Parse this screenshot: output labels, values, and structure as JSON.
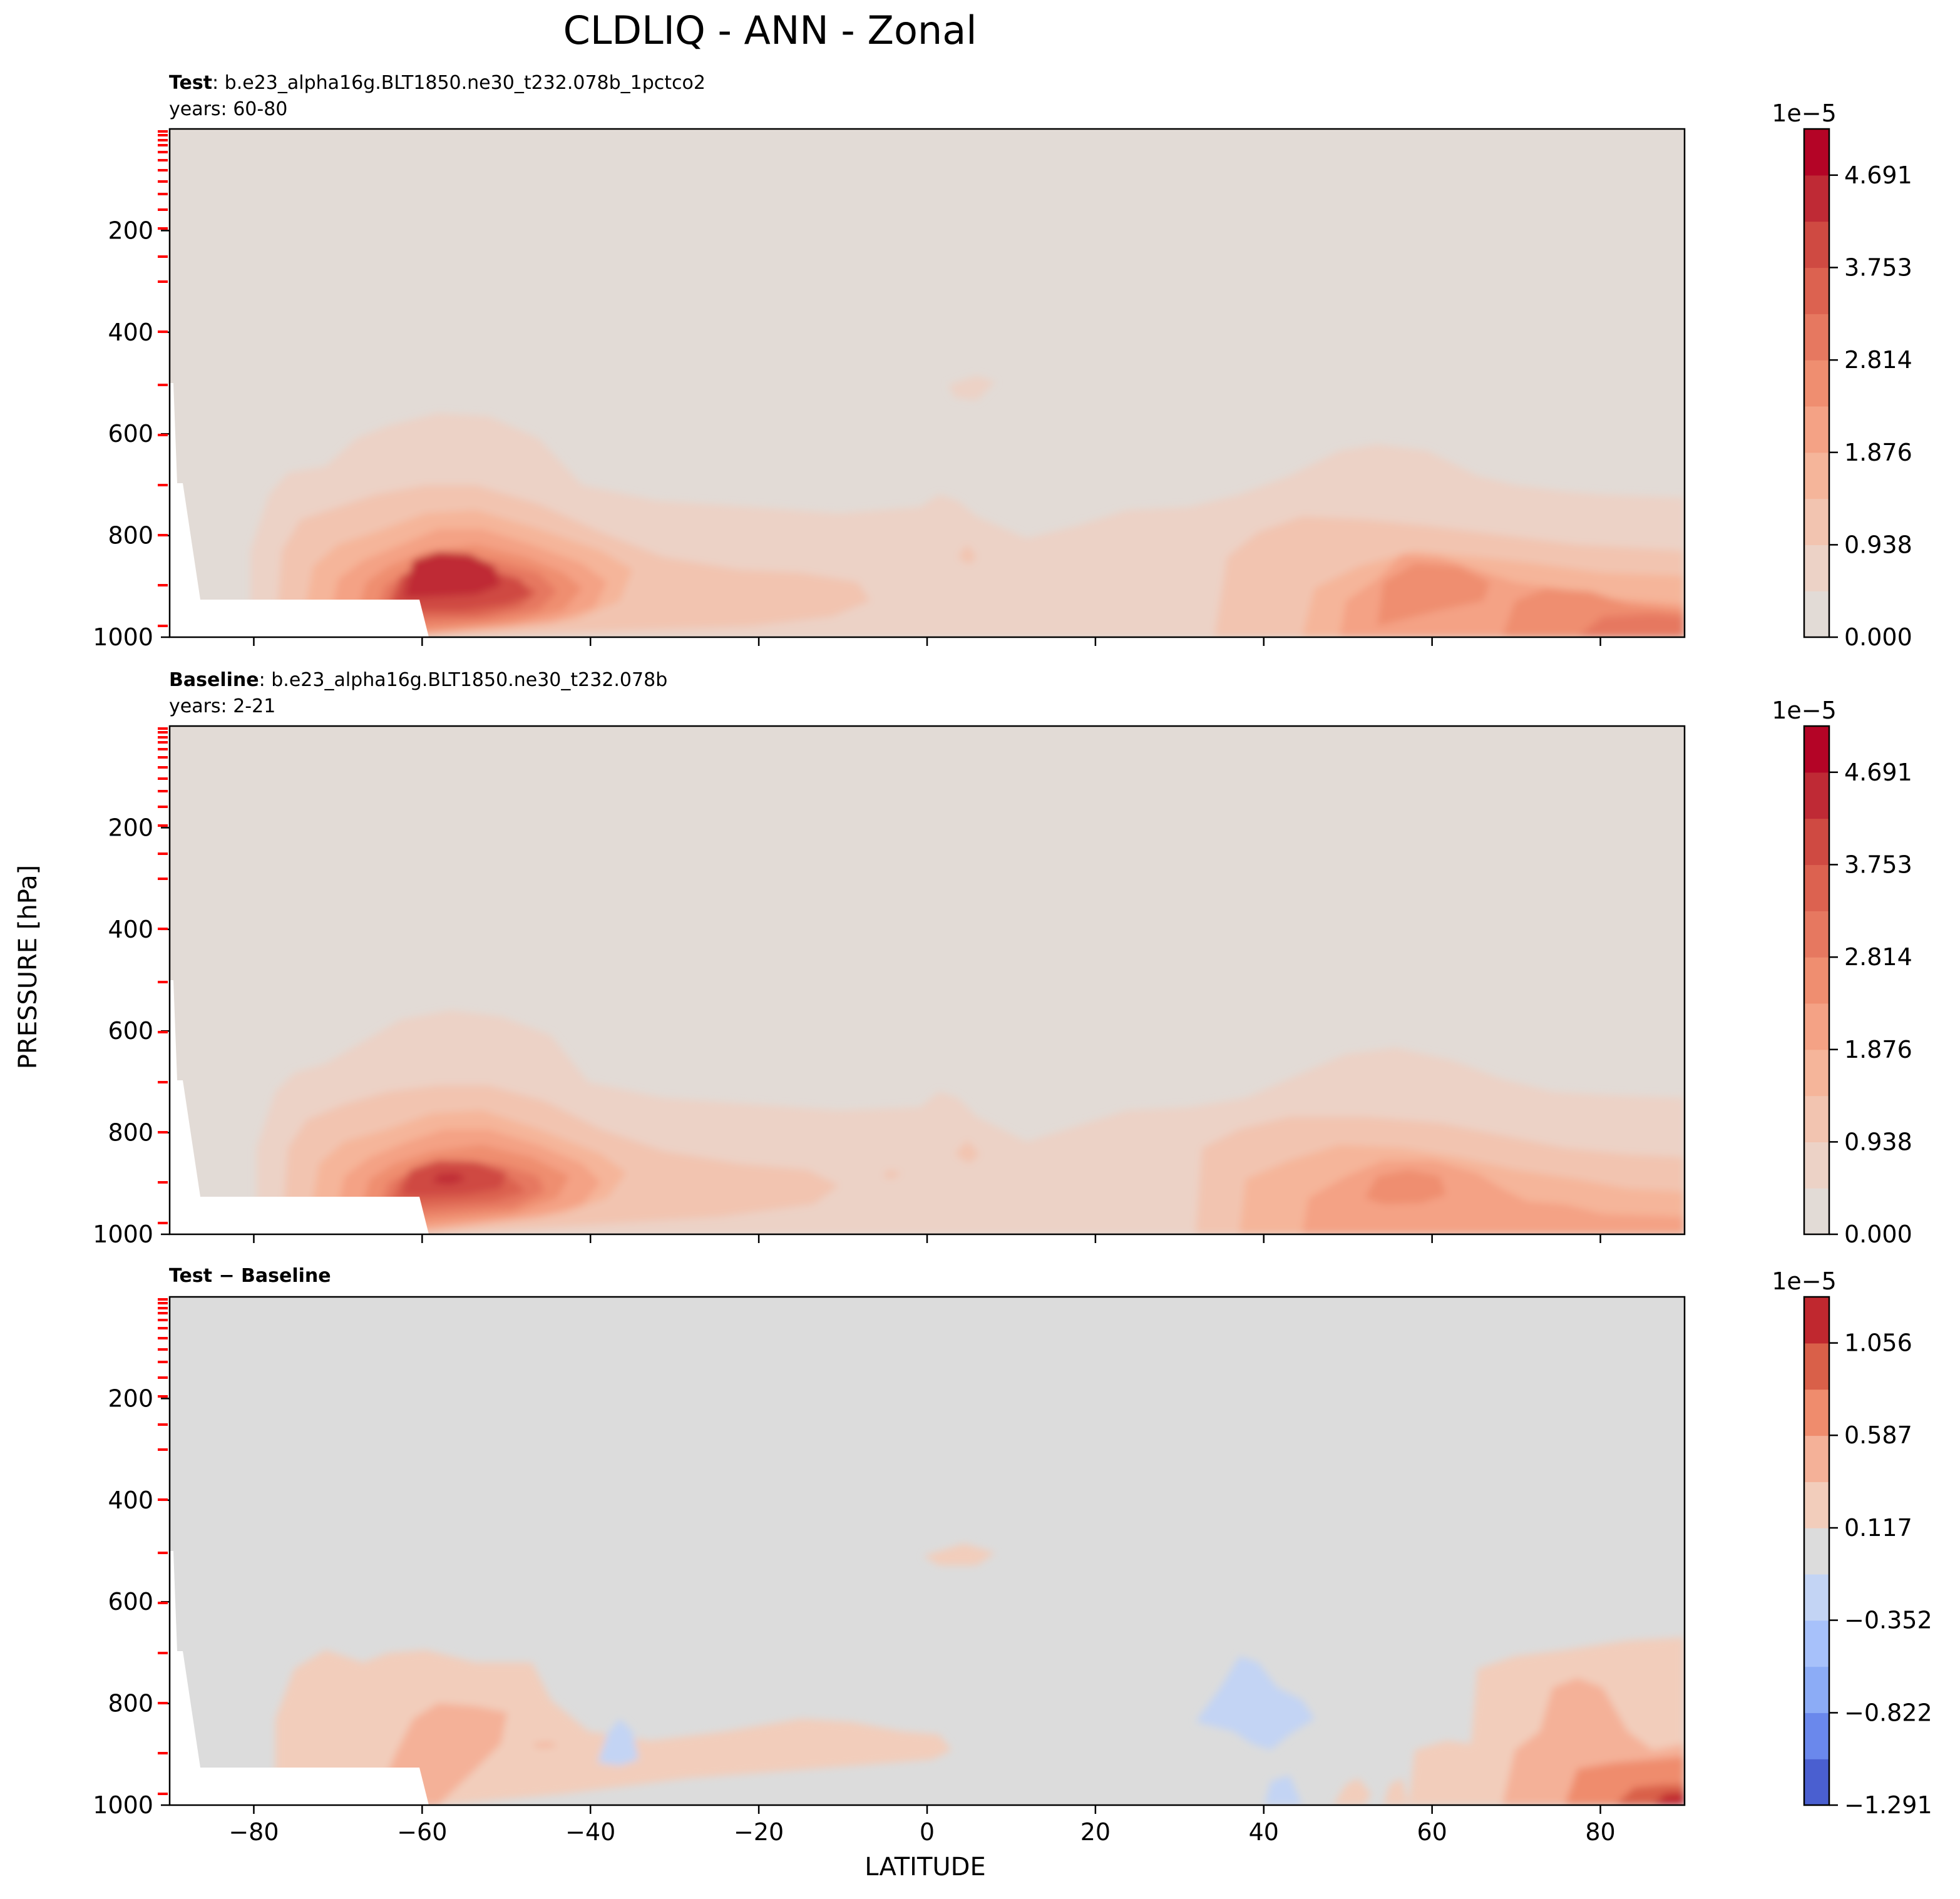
{
  "figure": {
    "title": "CLDLIQ - ANN - Zonal",
    "ylabel": "PRESSURE [hPa]",
    "xlabel": "LATITUDE"
  },
  "chart_data": [
    {
      "type": "contour",
      "panel": "test",
      "label_bold": "Test",
      "label_rest": ": b.e23_alpha16g.BLT1850.ne30_t232.078b_1pctco2",
      "years": "years: 60-80",
      "x": {
        "range": [
          -90,
          90
        ],
        "ticks": [
          "−80",
          "−60",
          "−40",
          "−20",
          "0",
          "20",
          "40",
          "60",
          "80"
        ],
        "tick_values": [
          -80,
          -60,
          -40,
          -20,
          0,
          20,
          40,
          60,
          80
        ]
      },
      "y": {
        "range": [
          0,
          1000
        ],
        "inverted": true,
        "ticks": [
          "200",
          "400",
          "600",
          "800",
          "1000"
        ],
        "tick_values": [
          200,
          400,
          600,
          800,
          1000
        ]
      },
      "colorbar": {
        "multiplier": "1e−5",
        "labels": [
          "4.691",
          "3.753",
          "2.814",
          "1.876",
          "0.938",
          "0.000"
        ],
        "label_values": [
          4.691,
          3.753,
          2.814,
          1.876,
          0.938,
          0.0
        ],
        "range": [
          0,
          5.16
        ]
      },
      "features": [
        {
          "lat": -55,
          "p": 870,
          "value": 4.8
        },
        {
          "lat": 78,
          "p": 960,
          "value": 2.8
        },
        {
          "lat": 55,
          "p": 900,
          "value": 2.3
        }
      ]
    },
    {
      "type": "contour",
      "panel": "baseline",
      "label_bold": "Baseline",
      "label_rest": ": b.e23_alpha16g.BLT1850.ne30_t232.078b",
      "years": "years: 2-21",
      "x": {
        "range": [
          -90,
          90
        ],
        "ticks": [
          "−80",
          "−60",
          "−40",
          "−20",
          "0",
          "20",
          "40",
          "60",
          "80"
        ],
        "tick_values": [
          -80,
          -60,
          -40,
          -20,
          0,
          20,
          40,
          60,
          80
        ]
      },
      "y": {
        "range": [
          0,
          1000
        ],
        "inverted": true,
        "ticks": [
          "200",
          "400",
          "600",
          "800",
          "1000"
        ],
        "tick_values": [
          200,
          400,
          600,
          800,
          1000
        ]
      },
      "colorbar": {
        "multiplier": "1e−5",
        "labels": [
          "4.691",
          "3.753",
          "2.814",
          "1.876",
          "0.938",
          "0.000"
        ],
        "label_values": [
          4.691,
          3.753,
          2.814,
          1.876,
          0.938,
          0.0
        ],
        "range": [
          0,
          5.16
        ]
      },
      "features": [
        {
          "lat": -55,
          "p": 870,
          "value": 4.7
        },
        {
          "lat": 55,
          "p": 900,
          "value": 2.0
        },
        {
          "lat": 80,
          "p": 960,
          "value": 1.9
        }
      ]
    },
    {
      "type": "contour",
      "panel": "difference",
      "label_bold": "Test − Baseline",
      "x": {
        "range": [
          -90,
          90
        ],
        "ticks": [
          "−80",
          "−60",
          "−40",
          "−20",
          "0",
          "20",
          "40",
          "60",
          "80"
        ],
        "tick_values": [
          -80,
          -60,
          -40,
          -20,
          0,
          20,
          40,
          60,
          80
        ]
      },
      "y": {
        "range": [
          0,
          1000
        ],
        "inverted": true,
        "ticks": [
          "200",
          "400",
          "600",
          "800",
          "1000"
        ],
        "tick_values": [
          200,
          400,
          600,
          800,
          1000
        ]
      },
      "colorbar": {
        "multiplier": "1e−5",
        "labels": [
          "1.056",
          "0.587",
          "0.117",
          "−0.352",
          "−0.822",
          "−1.291"
        ],
        "label_values": [
          1.056,
          0.587,
          0.117,
          -0.352,
          -0.822,
          -1.291
        ],
        "range": [
          -1.291,
          1.29
        ]
      },
      "features": [
        {
          "lat": -50,
          "p": 880,
          "value": 0.5
        },
        {
          "lat": 85,
          "p": 980,
          "value": 1.2
        },
        {
          "lat": 40,
          "p": 820,
          "value": -0.4
        }
      ]
    }
  ],
  "colors": {
    "test_base": "#e2dbd6",
    "diff_base": "#dcdcdc",
    "warm": [
      "#e2dbd6",
      "#ecd2c6",
      "#f2c4b0",
      "#f5b59a",
      "#f4a285",
      "#ef8e70",
      "#e67860",
      "#dc6250",
      "#cf4a42",
      "#bf2a35",
      "#b40426"
    ],
    "diverging": [
      "#4a5fd0",
      "#6a88ec",
      "#8cacf6",
      "#a7c1fa",
      "#c3d4f4",
      "#dcdcdc",
      "#f2cdbb",
      "#f4b198",
      "#ef8c6d",
      "#d96049",
      "#c0282f"
    ]
  }
}
